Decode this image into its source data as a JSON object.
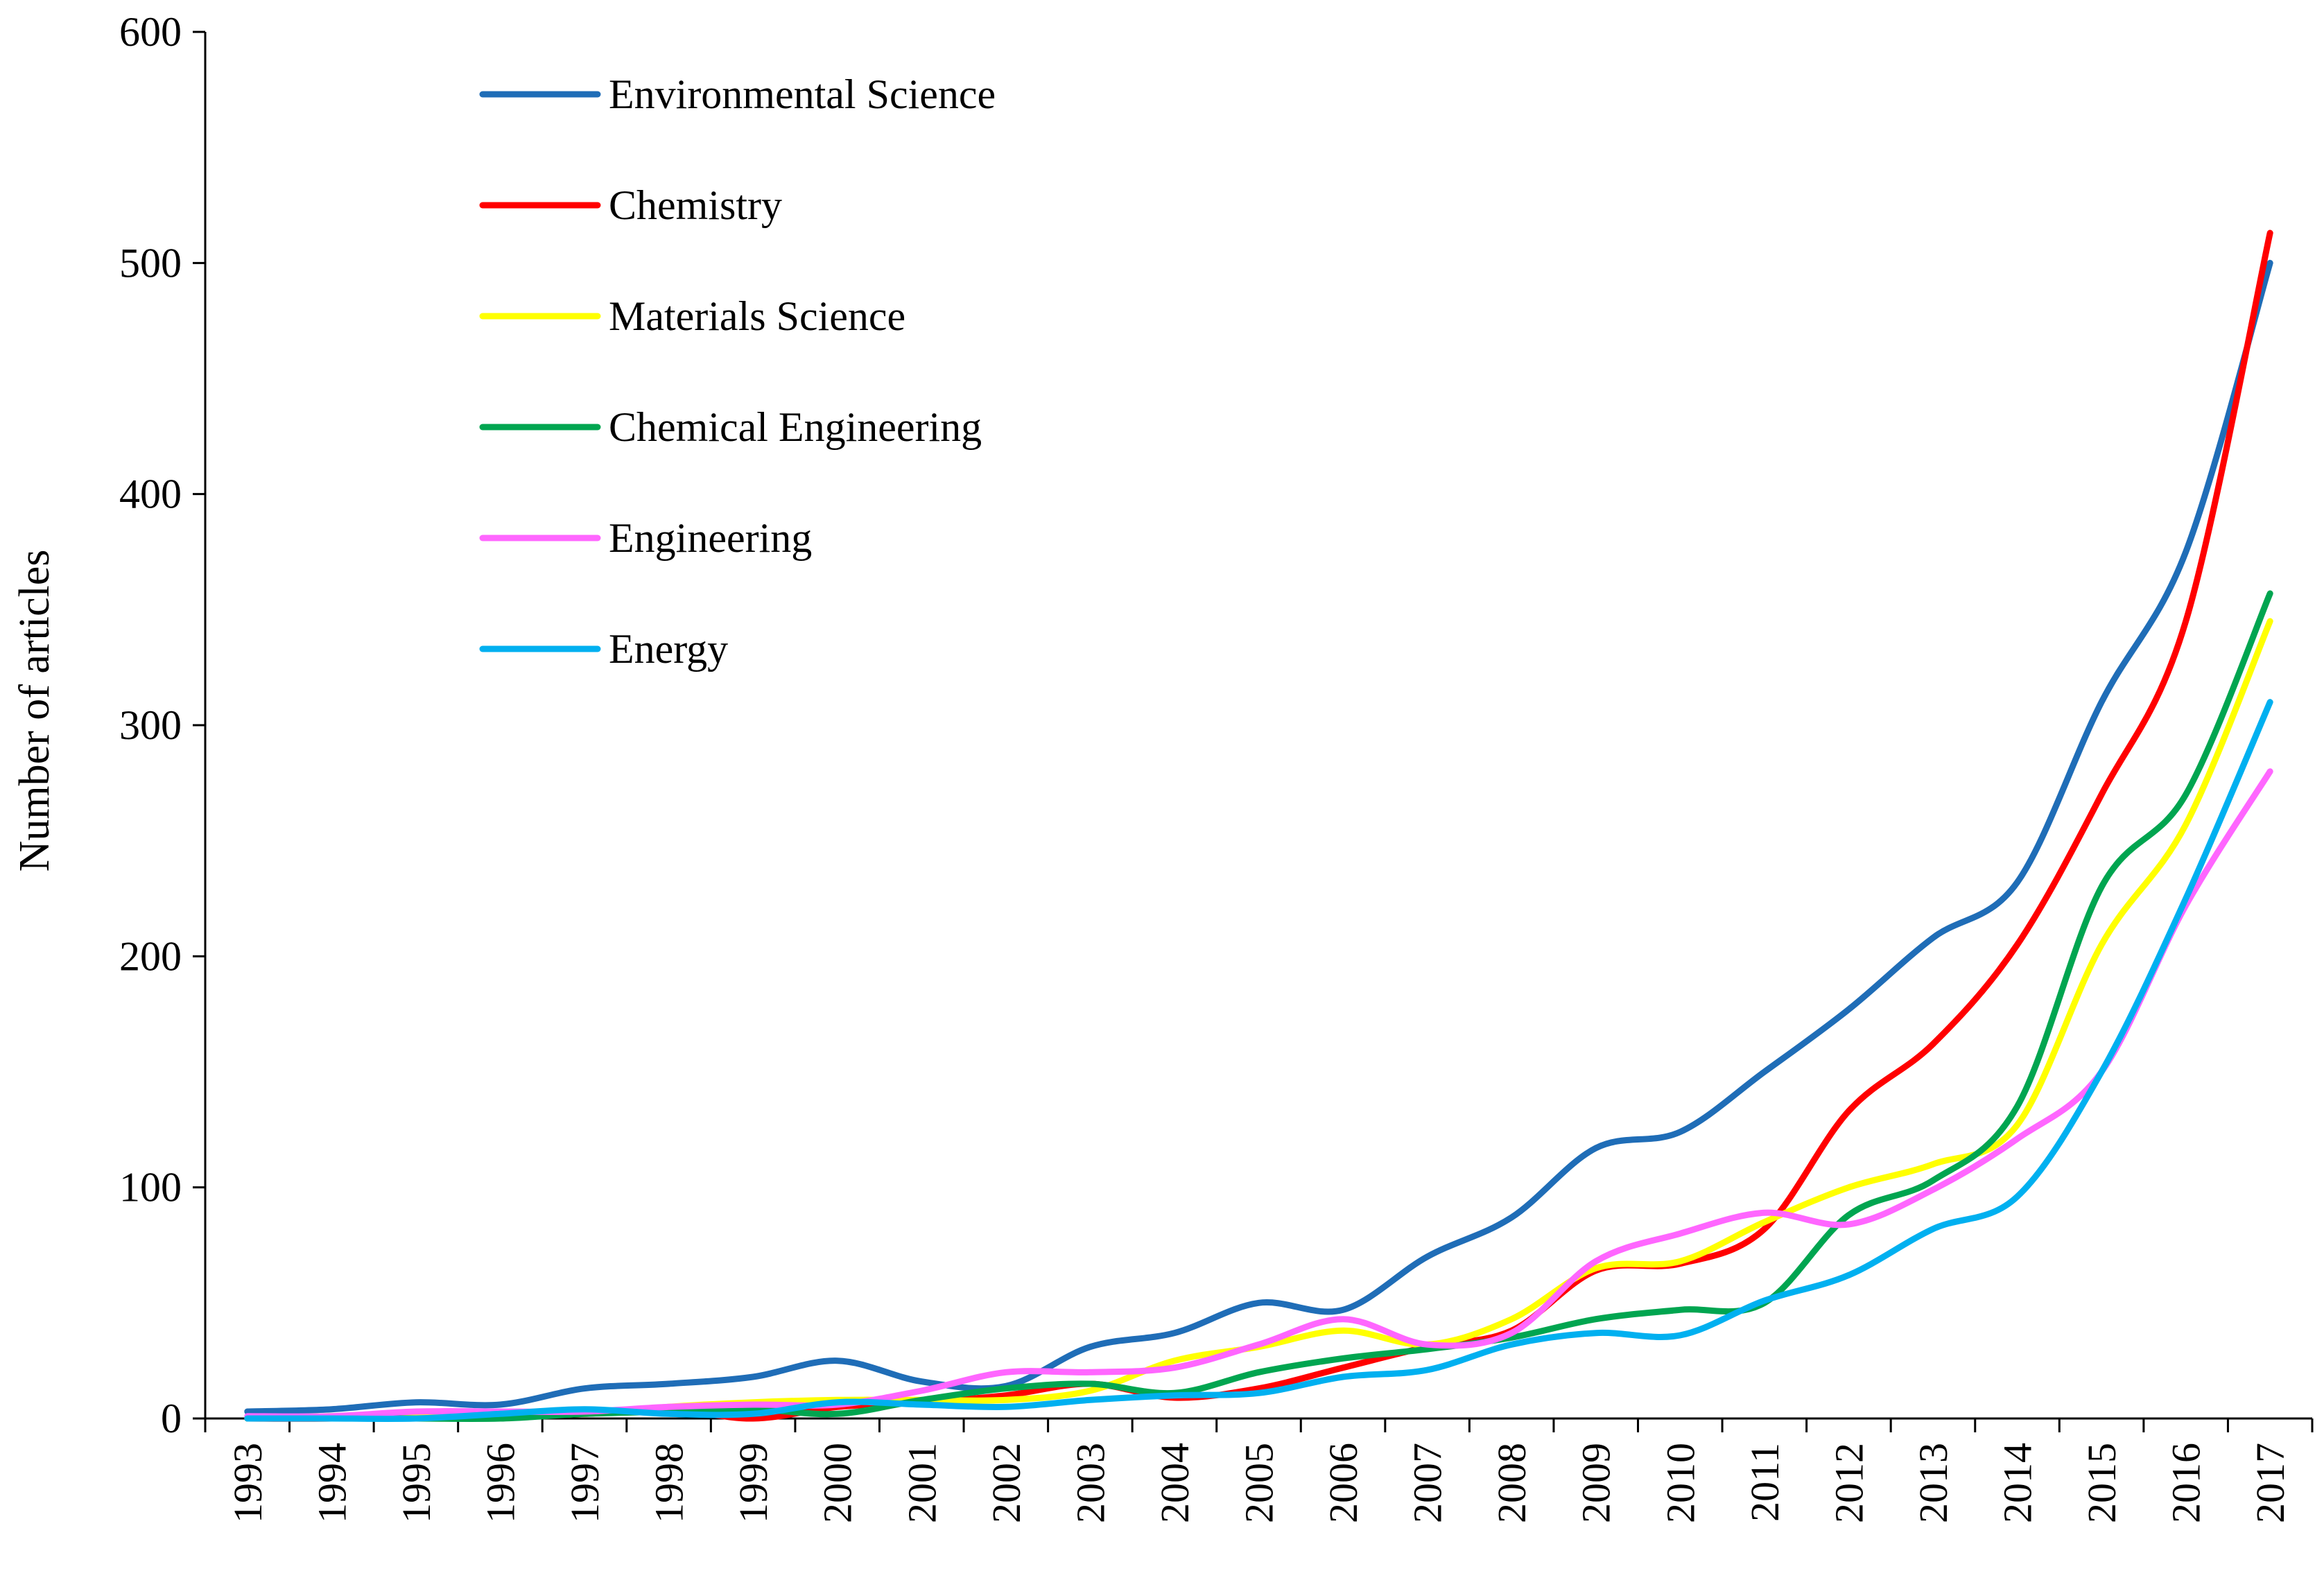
{
  "chart_data": {
    "type": "line",
    "title": "",
    "xlabel": "",
    "ylabel": "Number of articles",
    "ylim": [
      0,
      600
    ],
    "yticks": [
      0,
      100,
      200,
      300,
      400,
      500,
      600
    ],
    "grid": false,
    "legend_position": "top-left",
    "categories": [
      "1993",
      "1994",
      "1995",
      "1996",
      "1997",
      "1998",
      "1999",
      "2000",
      "2001",
      "2002",
      "2003",
      "2004",
      "2005",
      "2006",
      "2007",
      "2008",
      "2009",
      "2010",
      "2011",
      "2012",
      "2013",
      "2014",
      "2015",
      "2016",
      "2017"
    ],
    "series": [
      {
        "name": "Environmental Science",
        "color": "#1F6DB7",
        "values": [
          3,
          4,
          7,
          6,
          13,
          15,
          18,
          25,
          16,
          14,
          31,
          37,
          50,
          47,
          70,
          87,
          117,
          124,
          150,
          177,
          208,
          232,
          310,
          375,
          500
        ]
      },
      {
        "name": "Chemistry",
        "color": "#FF0000",
        "values": [
          0,
          0,
          1,
          1,
          2,
          4,
          0,
          5,
          7,
          10,
          15,
          9,
          13,
          22,
          31,
          38,
          64,
          67,
          82,
          133,
          162,
          205,
          270,
          345,
          513
        ]
      },
      {
        "name": "Materials Science",
        "color": "#FFFF00",
        "values": [
          0,
          1,
          1,
          1,
          2,
          5,
          7,
          8,
          8,
          8,
          12,
          25,
          31,
          38,
          32,
          43,
          65,
          68,
          85,
          100,
          110,
          127,
          205,
          257,
          345
        ]
      },
      {
        "name": "Chemical Engineering",
        "color": "#00A550",
        "values": [
          0,
          0,
          0,
          0,
          2,
          3,
          4,
          2,
          8,
          13,
          15,
          11,
          20,
          26,
          30,
          35,
          43,
          47,
          50,
          88,
          103,
          135,
          230,
          270,
          357
        ]
      },
      {
        "name": "Engineering",
        "color": "#FF66FF",
        "values": [
          1,
          1,
          3,
          3,
          3,
          5,
          6,
          6,
          12,
          20,
          20,
          22,
          32,
          43,
          32,
          37,
          68,
          80,
          89,
          84,
          99,
          121,
          150,
          222,
          280
        ]
      },
      {
        "name": "Energy",
        "color": "#00B0F0",
        "values": [
          0,
          0,
          0,
          2,
          4,
          2,
          2,
          7,
          6,
          5,
          8,
          10,
          11,
          18,
          21,
          32,
          37,
          36,
          51,
          62,
          82,
          96,
          150,
          225,
          310
        ]
      }
    ]
  }
}
